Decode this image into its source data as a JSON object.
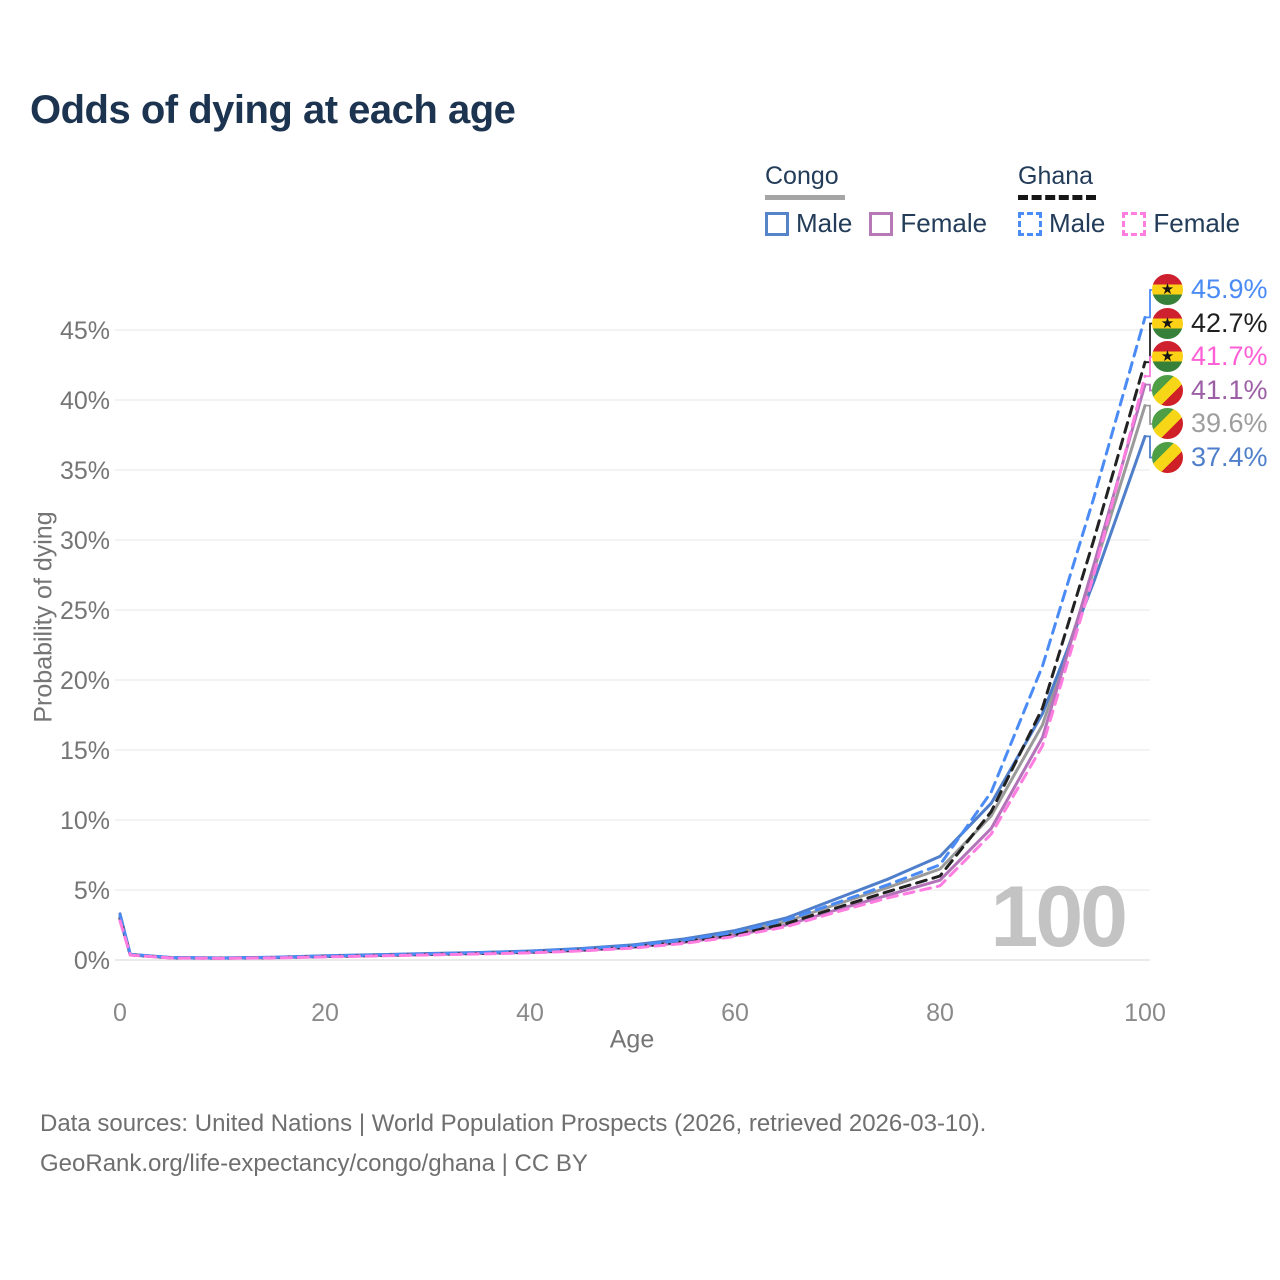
{
  "title": "Odds of dying at each age",
  "legend": {
    "groups": [
      {
        "label": "Congo",
        "line_style": "solid",
        "underline_color": "#a5a5a5",
        "items": [
          {
            "label": "Male",
            "color": "#4f7fca"
          },
          {
            "label": "Female",
            "color": "#b273b8"
          }
        ]
      },
      {
        "label": "Ghana",
        "line_style": "dashed",
        "underline_color": "#161616",
        "items": [
          {
            "label": "Male",
            "color": "#4b8bf5"
          },
          {
            "label": "Female",
            "color": "#ff7ce0"
          }
        ]
      }
    ]
  },
  "watermark": "100",
  "footer": {
    "line1": "Data sources: United Nations | World Population Prospects (2026, retrieved 2026-03-10).",
    "line2": "GeoRank.org/life-expectancy/congo/ghana | CC BY"
  },
  "chart_data": {
    "type": "line",
    "xlabel": "Age",
    "ylabel": "Probability of dying",
    "xlim": [
      0,
      100
    ],
    "ylim": [
      0,
      47.5
    ],
    "x_ticks": [
      0,
      20,
      40,
      60,
      80,
      100
    ],
    "y_ticks": [
      0,
      5,
      10,
      15,
      20,
      25,
      30,
      35,
      40,
      45
    ],
    "y_tick_suffix": "%",
    "grid": true,
    "legend_position": "top-right",
    "ages": [
      0,
      1,
      5,
      10,
      15,
      20,
      25,
      30,
      35,
      40,
      45,
      50,
      55,
      60,
      65,
      70,
      75,
      80,
      85,
      90,
      95,
      100
    ],
    "series": [
      {
        "name": "Congo Both sexes",
        "country": "congo",
        "sex": "both",
        "line": "solid",
        "color": "#9a9a9a",
        "values": [
          3.1,
          0.38,
          0.16,
          0.14,
          0.18,
          0.27,
          0.34,
          0.42,
          0.5,
          0.59,
          0.75,
          0.99,
          1.38,
          1.92,
          2.75,
          4.0,
          5.2,
          6.5,
          10.3,
          16.8,
          27.8,
          39.6
        ],
        "end_label": "39.6%",
        "end_label_color": "#9e9e9e"
      },
      {
        "name": "Congo Male",
        "country": "congo",
        "sex": "male",
        "line": "solid",
        "color": "#4f7fca",
        "values": [
          3.3,
          0.4,
          0.18,
          0.15,
          0.2,
          0.3,
          0.38,
          0.46,
          0.54,
          0.64,
          0.82,
          1.08,
          1.5,
          2.1,
          3.0,
          4.4,
          5.8,
          7.4,
          11.2,
          17.6,
          27.0,
          37.4
        ],
        "end_label": "37.4%",
        "end_label_color": "#4f7fca"
      },
      {
        "name": "Congo Female",
        "country": "congo",
        "sex": "female",
        "line": "solid",
        "color": "#b273b8",
        "values": [
          2.9,
          0.36,
          0.15,
          0.13,
          0.16,
          0.24,
          0.31,
          0.38,
          0.46,
          0.54,
          0.68,
          0.9,
          1.26,
          1.75,
          2.5,
          3.6,
          4.65,
          5.7,
          9.4,
          15.9,
          28.2,
          41.1
        ],
        "end_label": "41.1%",
        "end_label_color": "#9c5fa5"
      },
      {
        "name": "Ghana Both sexes",
        "country": "ghana",
        "sex": "both",
        "line": "dashed",
        "color": "#222222",
        "values": [
          3.0,
          0.37,
          0.15,
          0.13,
          0.17,
          0.25,
          0.32,
          0.4,
          0.47,
          0.56,
          0.71,
          0.93,
          1.3,
          1.82,
          2.6,
          3.75,
          4.9,
          6.0,
          10.6,
          18.0,
          30.0,
          42.7
        ],
        "end_label": "42.7%",
        "end_label_color": "#1f1f1f"
      },
      {
        "name": "Ghana Male",
        "country": "ghana",
        "sex": "male",
        "line": "dashed",
        "color": "#4b8bf5",
        "values": [
          3.2,
          0.4,
          0.17,
          0.14,
          0.19,
          0.28,
          0.36,
          0.44,
          0.52,
          0.61,
          0.78,
          1.02,
          1.42,
          1.98,
          2.85,
          4.1,
          5.4,
          6.8,
          12.0,
          21.0,
          33.0,
          45.9
        ],
        "end_label": "45.9%",
        "end_label_color": "#4b8bf5"
      },
      {
        "name": "Ghana Female",
        "country": "ghana",
        "sex": "female",
        "line": "dashed",
        "color": "#ff7ce0",
        "values": [
          2.8,
          0.35,
          0.14,
          0.12,
          0.15,
          0.22,
          0.29,
          0.36,
          0.43,
          0.51,
          0.65,
          0.85,
          1.18,
          1.68,
          2.38,
          3.45,
          4.45,
          5.3,
          9.0,
          15.3,
          27.5,
          41.7
        ],
        "end_label": "41.7%",
        "end_label_color": "#ff5fd6"
      }
    ]
  }
}
